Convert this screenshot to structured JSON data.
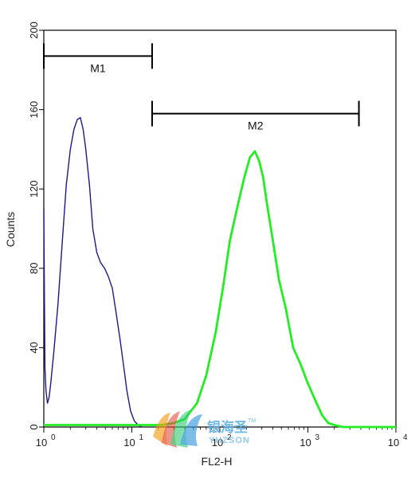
{
  "chart_data": {
    "type": "line",
    "title": "",
    "xlabel": "FL2-H",
    "ylabel": "Counts",
    "x_scale": "log",
    "xlim": [
      1,
      10000
    ],
    "ylim": [
      0,
      200
    ],
    "grid": false,
    "y_ticks": [
      0,
      40,
      80,
      120,
      160,
      200
    ],
    "x_ticks": [
      {
        "base": "10",
        "exp": "0"
      },
      {
        "base": "10",
        "exp": "1"
      },
      {
        "base": "10",
        "exp": "2"
      },
      {
        "base": "10",
        "exp": "3"
      },
      {
        "base": "10",
        "exp": "4"
      }
    ],
    "gates": [
      {
        "label": "M1",
        "x_start": 1,
        "x_end": 17,
        "y": 187
      },
      {
        "label": "M2",
        "x_start": 17,
        "x_end": 3800,
        "y": 158
      }
    ],
    "series": [
      {
        "color": "#1a1a8c",
        "x": [
          1.0,
          1.03,
          1.06,
          1.1,
          1.15,
          1.2,
          1.3,
          1.45,
          1.6,
          1.8,
          2.0,
          2.2,
          2.4,
          2.6,
          2.8,
          3.0,
          3.3,
          3.6,
          4.0,
          4.4,
          4.9,
          5.4,
          6.0,
          6.6,
          7.3,
          8.0,
          8.8,
          9.7,
          10.7,
          11.8,
          13.0
        ],
        "y": [
          110,
          30,
          18,
          12,
          15,
          22,
          38,
          62,
          90,
          122,
          140,
          150,
          155,
          156,
          150,
          140,
          122,
          100,
          88,
          83,
          80,
          76,
          70,
          58,
          45,
          32,
          18,
          8,
          3,
          1,
          0
        ]
      },
      {
        "color": "#22ee22",
        "x": [
          1.0,
          10.0,
          15.0,
          22.0,
          30.0,
          40.0,
          55.0,
          70.0,
          90.0,
          110.0,
          130.0,
          160.0,
          190.0,
          220.0,
          250.0,
          280.0,
          310.0,
          350.0,
          400.0,
          470.0,
          560.0,
          680.0,
          820.0,
          1000.0,
          1200.0,
          1450.0,
          1700.0,
          2000.0,
          2500.0,
          10000.0
        ],
        "y": [
          1,
          1,
          1,
          1,
          2,
          4,
          12,
          26,
          48,
          72,
          94,
          112,
          126,
          136,
          139,
          134,
          126,
          110,
          94,
          74,
          60,
          40,
          32,
          22,
          14,
          6,
          2,
          1,
          0,
          0
        ]
      }
    ]
  },
  "watermark": {
    "brand_cn": "银海圣",
    "brand_en": "YHZSON",
    "trademark": "TM"
  }
}
